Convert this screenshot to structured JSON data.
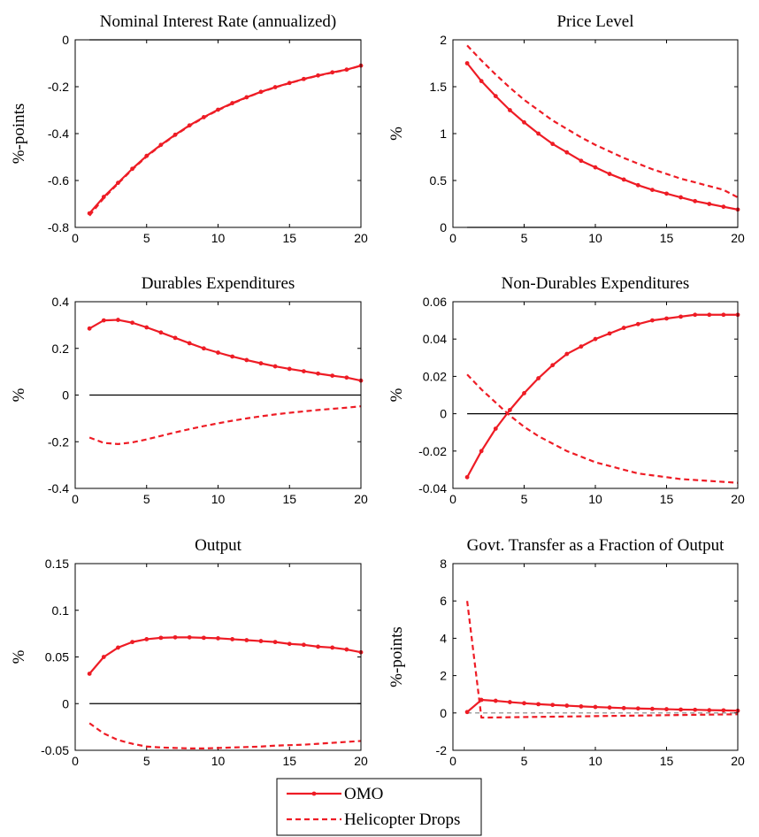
{
  "chart_data": [
    {
      "type": "line",
      "title": "Nominal Interest Rate (annualized)",
      "ylabel": "%-points",
      "xlim": [
        0,
        20
      ],
      "ylim": [
        -0.8,
        0
      ],
      "xticks": [
        "0",
        "5",
        "10",
        "15",
        "20"
      ],
      "yticks": [
        "-0.8",
        "-0.6",
        "-0.4",
        "-0.2",
        "0"
      ],
      "zero_line": {
        "value": 0,
        "dashed": false
      },
      "series": [
        {
          "name": "OMO",
          "style": "solid-dots",
          "x": [
            1,
            2,
            3,
            4,
            5,
            6,
            7,
            8,
            9,
            10,
            11,
            12,
            13,
            14,
            15,
            16,
            17,
            18,
            19,
            20
          ],
          "values": [
            -0.74,
            -0.67,
            -0.61,
            -0.55,
            -0.495,
            -0.448,
            -0.405,
            -0.365,
            -0.33,
            -0.298,
            -0.27,
            -0.245,
            -0.222,
            -0.202,
            -0.184,
            -0.167,
            -0.152,
            -0.139,
            -0.127,
            -0.11
          ]
        },
        {
          "name": "Helicopter Drops",
          "style": "dashed",
          "x": [
            1,
            2,
            3,
            4,
            5,
            6,
            7,
            8,
            9,
            10,
            11,
            12,
            13,
            14,
            15,
            16,
            17,
            18,
            19,
            20
          ],
          "values": [
            -0.75,
            -0.675,
            -0.613,
            -0.553,
            -0.498,
            -0.45,
            -0.407,
            -0.367,
            -0.332,
            -0.3,
            -0.272,
            -0.246,
            -0.223,
            -0.203,
            -0.185,
            -0.168,
            -0.153,
            -0.14,
            -0.128,
            -0.11
          ]
        }
      ]
    },
    {
      "type": "line",
      "title": "Price Level",
      "ylabel": "%",
      "xlim": [
        0,
        20
      ],
      "ylim": [
        0,
        2
      ],
      "xticks": [
        "0",
        "5",
        "10",
        "15",
        "20"
      ],
      "yticks": [
        "0",
        "0.5",
        "1",
        "1.5",
        "2"
      ],
      "zero_line": {
        "value": 0,
        "dashed": false
      },
      "series": [
        {
          "name": "OMO",
          "style": "solid-dots",
          "x": [
            1,
            2,
            3,
            4,
            5,
            6,
            7,
            8,
            9,
            10,
            11,
            12,
            13,
            14,
            15,
            16,
            17,
            18,
            19,
            20
          ],
          "values": [
            1.75,
            1.56,
            1.4,
            1.25,
            1.12,
            1.0,
            0.89,
            0.8,
            0.71,
            0.64,
            0.57,
            0.51,
            0.45,
            0.4,
            0.36,
            0.32,
            0.28,
            0.25,
            0.22,
            0.19
          ]
        },
        {
          "name": "Helicopter Drops",
          "style": "dashed",
          "x": [
            1,
            2,
            3,
            4,
            5,
            6,
            7,
            8,
            9,
            10,
            11,
            12,
            13,
            14,
            15,
            16,
            17,
            18,
            19,
            20
          ],
          "values": [
            1.94,
            1.78,
            1.63,
            1.49,
            1.36,
            1.25,
            1.14,
            1.05,
            0.96,
            0.88,
            0.81,
            0.74,
            0.68,
            0.62,
            0.57,
            0.52,
            0.48,
            0.44,
            0.4,
            0.32
          ]
        }
      ]
    },
    {
      "type": "line",
      "title": "Durables Expenditures",
      "ylabel": "%",
      "xlim": [
        0,
        20
      ],
      "ylim": [
        -0.4,
        0.4
      ],
      "xticks": [
        "0",
        "5",
        "10",
        "15",
        "20"
      ],
      "yticks": [
        "-0.4",
        "-0.2",
        "0",
        "0.2",
        "0.4"
      ],
      "zero_line": {
        "value": 0,
        "dashed": false
      },
      "series": [
        {
          "name": "OMO",
          "style": "solid-dots",
          "x": [
            1,
            2,
            3,
            4,
            5,
            6,
            7,
            8,
            9,
            10,
            11,
            12,
            13,
            14,
            15,
            16,
            17,
            18,
            19,
            20
          ],
          "values": [
            0.285,
            0.32,
            0.322,
            0.31,
            0.29,
            0.268,
            0.245,
            0.222,
            0.2,
            0.182,
            0.165,
            0.15,
            0.136,
            0.123,
            0.112,
            0.102,
            0.092,
            0.083,
            0.075,
            0.062
          ]
        },
        {
          "name": "Helicopter Drops",
          "style": "dashed",
          "x": [
            1,
            2,
            3,
            4,
            5,
            6,
            7,
            8,
            9,
            10,
            11,
            12,
            13,
            14,
            15,
            16,
            17,
            18,
            19,
            20
          ],
          "values": [
            -0.182,
            -0.205,
            -0.21,
            -0.203,
            -0.19,
            -0.175,
            -0.16,
            -0.146,
            -0.133,
            -0.121,
            -0.11,
            -0.1,
            -0.091,
            -0.083,
            -0.076,
            -0.07,
            -0.064,
            -0.059,
            -0.054,
            -0.048
          ]
        }
      ]
    },
    {
      "type": "line",
      "title": "Non-Durables Expenditures",
      "ylabel": "%",
      "xlim": [
        0,
        20
      ],
      "ylim": [
        -0.04,
        0.06
      ],
      "xticks": [
        "0",
        "5",
        "10",
        "15",
        "20"
      ],
      "yticks": [
        "-0.04",
        "-0.02",
        "0",
        "0.02",
        "0.04",
        "0.06"
      ],
      "zero_line": {
        "value": 0,
        "dashed": false
      },
      "series": [
        {
          "name": "OMO",
          "style": "solid-dots",
          "x": [
            1,
            2,
            3,
            4,
            5,
            6,
            7,
            8,
            9,
            10,
            11,
            12,
            13,
            14,
            15,
            16,
            17,
            18,
            19,
            20
          ],
          "values": [
            -0.034,
            -0.02,
            -0.008,
            0.002,
            0.011,
            0.019,
            0.026,
            0.032,
            0.036,
            0.04,
            0.043,
            0.046,
            0.048,
            0.05,
            0.051,
            0.052,
            0.053,
            0.053,
            0.053,
            0.053
          ]
        },
        {
          "name": "Helicopter Drops",
          "style": "dashed",
          "x": [
            1,
            2,
            3,
            4,
            5,
            6,
            7,
            8,
            9,
            10,
            11,
            12,
            13,
            14,
            15,
            16,
            17,
            18,
            19,
            20
          ],
          "values": [
            0.021,
            0.013,
            0.006,
            -0.001,
            -0.007,
            -0.012,
            -0.016,
            -0.02,
            -0.023,
            -0.026,
            -0.028,
            -0.03,
            -0.032,
            -0.033,
            -0.034,
            -0.035,
            -0.0355,
            -0.036,
            -0.0365,
            -0.037
          ]
        }
      ]
    },
    {
      "type": "line",
      "title": "Output",
      "ylabel": "%",
      "xlim": [
        0,
        20
      ],
      "ylim": [
        -0.05,
        0.15
      ],
      "xticks": [
        "0",
        "5",
        "10",
        "15",
        "20"
      ],
      "yticks": [
        "-0.05",
        "0",
        "0.05",
        "0.1",
        "0.15"
      ],
      "zero_line": {
        "value": 0,
        "dashed": false
      },
      "series": [
        {
          "name": "OMO",
          "style": "solid-dots",
          "x": [
            1,
            2,
            3,
            4,
            5,
            6,
            7,
            8,
            9,
            10,
            11,
            12,
            13,
            14,
            15,
            16,
            17,
            18,
            19,
            20
          ],
          "values": [
            0.032,
            0.05,
            0.06,
            0.066,
            0.069,
            0.0705,
            0.071,
            0.071,
            0.0705,
            0.07,
            0.069,
            0.068,
            0.067,
            0.066,
            0.064,
            0.063,
            0.061,
            0.06,
            0.058,
            0.055
          ]
        },
        {
          "name": "Helicopter Drops",
          "style": "dashed",
          "x": [
            1,
            2,
            3,
            4,
            5,
            6,
            7,
            8,
            9,
            10,
            11,
            12,
            13,
            14,
            15,
            16,
            17,
            18,
            19,
            20
          ],
          "values": [
            -0.021,
            -0.032,
            -0.039,
            -0.043,
            -0.046,
            -0.047,
            -0.0475,
            -0.048,
            -0.048,
            -0.0475,
            -0.047,
            -0.0465,
            -0.046,
            -0.045,
            -0.0445,
            -0.044,
            -0.043,
            -0.042,
            -0.041,
            -0.04
          ]
        }
      ]
    },
    {
      "type": "line",
      "title": "Govt. Transfer as a Fraction of Output",
      "ylabel": "%-points",
      "xlim": [
        0,
        20
      ],
      "ylim": [
        -2,
        8
      ],
      "xticks": [
        "0",
        "5",
        "10",
        "15",
        "20"
      ],
      "yticks": [
        "-2",
        "0",
        "2",
        "4",
        "6",
        "8"
      ],
      "zero_line": {
        "value": 0,
        "dashed": true
      },
      "series": [
        {
          "name": "OMO",
          "style": "solid-dots",
          "x": [
            1,
            2,
            3,
            4,
            5,
            6,
            7,
            8,
            9,
            10,
            11,
            12,
            13,
            14,
            15,
            16,
            17,
            18,
            19,
            20
          ],
          "values": [
            0.05,
            0.7,
            0.65,
            0.58,
            0.52,
            0.47,
            0.43,
            0.39,
            0.35,
            0.32,
            0.29,
            0.26,
            0.24,
            0.22,
            0.2,
            0.18,
            0.17,
            0.15,
            0.14,
            0.12
          ]
        },
        {
          "name": "Helicopter Drops",
          "style": "dashed",
          "x": [
            1,
            2,
            3,
            4,
            5,
            6,
            7,
            8,
            9,
            10,
            11,
            12,
            13,
            14,
            15,
            16,
            17,
            18,
            19,
            20
          ],
          "values": [
            6.0,
            -0.25,
            -0.24,
            -0.23,
            -0.22,
            -0.21,
            -0.2,
            -0.19,
            -0.18,
            -0.17,
            -0.16,
            -0.15,
            -0.14,
            -0.13,
            -0.12,
            -0.11,
            -0.1,
            -0.09,
            -0.08,
            -0.07
          ]
        }
      ]
    }
  ],
  "legend": {
    "placement": "bottom-center",
    "entries": [
      {
        "label": "OMO",
        "style": "solid-dots"
      },
      {
        "label": "Helicopter Drops",
        "style": "dashed"
      }
    ]
  },
  "colors": {
    "series": "#ee1c25",
    "zero_line": "#000000",
    "zero_line_dashed": "#808080",
    "axes": "#000000"
  }
}
